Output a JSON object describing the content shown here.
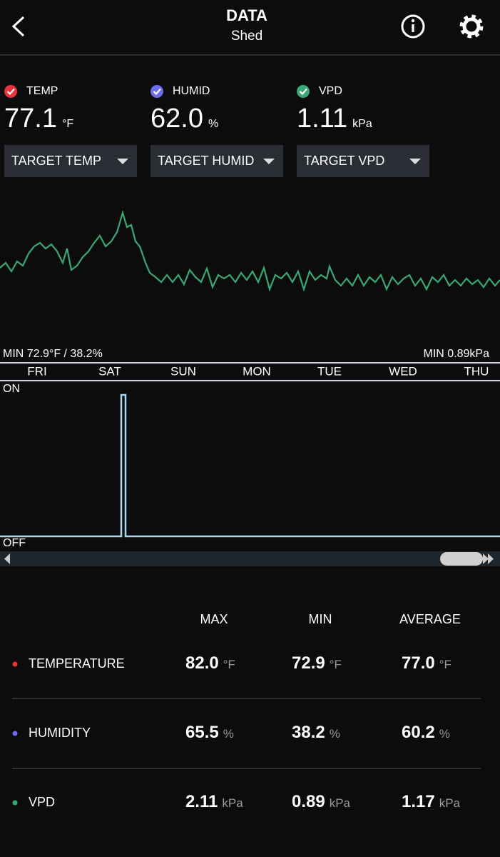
{
  "header": {
    "title": "DATA",
    "subtitle": "Shed"
  },
  "readings": [
    {
      "label": "TEMP",
      "value": "77.1",
      "unit": "°F",
      "color": "#e8333a",
      "target": "TARGET TEMP"
    },
    {
      "label": "HUMID",
      "value": "62.0",
      "unit": "%",
      "color": "#6b6cf0",
      "target": "TARGET HUMID"
    },
    {
      "label": "VPD",
      "value": "1.11",
      "unit": "kPa",
      "color": "#3aa874",
      "target": "TARGET VPD"
    }
  ],
  "chart": {
    "min_left": "MIN 72.9°F / 38.2%",
    "min_right": "MIN 0.89kPa",
    "days": [
      "FRI",
      "SAT",
      "SUN",
      "MON",
      "TUE",
      "WED",
      "THU"
    ],
    "on": "ON",
    "off": "OFF"
  },
  "table": {
    "columns": [
      "MAX",
      "MIN",
      "AVERAGE"
    ],
    "rows": [
      {
        "label": "TEMPERATURE",
        "color": "#e8333a",
        "cells": [
          {
            "value": "82.0",
            "unit": "°F"
          },
          {
            "value": "72.9",
            "unit": "°F"
          },
          {
            "value": "77.0",
            "unit": "°F"
          }
        ]
      },
      {
        "label": "HUMIDITY",
        "color": "#6b6cf0",
        "cells": [
          {
            "value": "65.5",
            "unit": "%"
          },
          {
            "value": "38.2",
            "unit": "%"
          },
          {
            "value": "60.2",
            "unit": "%"
          }
        ]
      },
      {
        "label": "VPD",
        "color": "#3aa874",
        "cells": [
          {
            "value": "2.11",
            "unit": "kPa"
          },
          {
            "value": "0.89",
            "unit": "kPa"
          },
          {
            "value": "1.17",
            "unit": "kPa"
          }
        ]
      }
    ]
  }
}
